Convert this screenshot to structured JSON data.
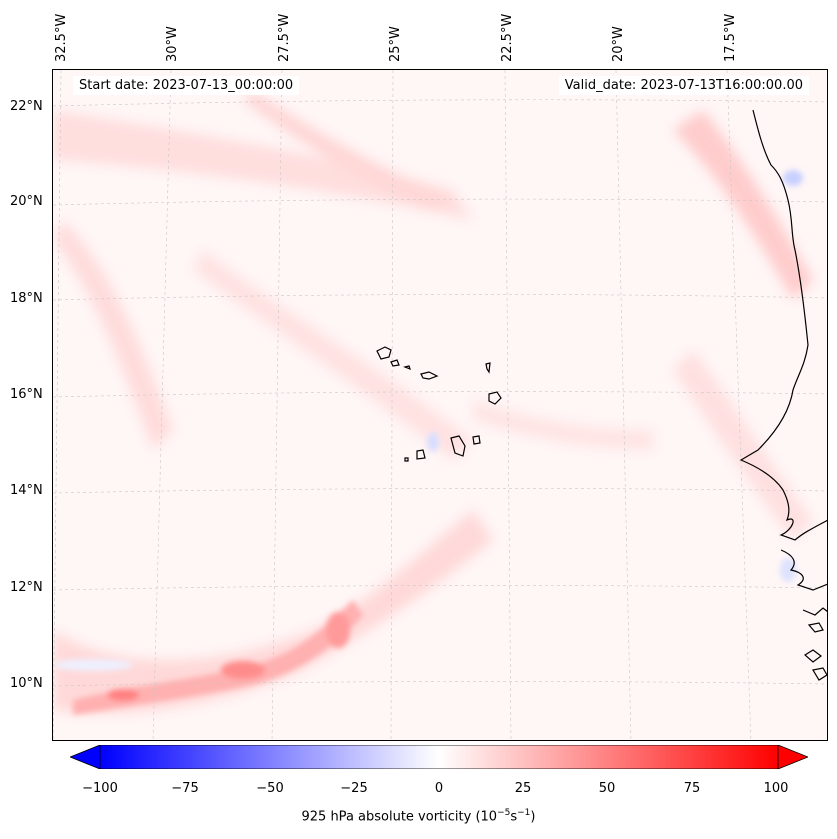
{
  "map": {
    "start_label": "Start date: 2023-07-13_00:00:00",
    "valid_label": "Valid_date: 2023-07-13T16:00:00.00",
    "longitudes": [
      "32.5°W",
      "30°W",
      "27.5°W",
      "25°W",
      "22.5°W",
      "20°W",
      "17.5°W"
    ],
    "latitudes": [
      "22°N",
      "20°N",
      "18°N",
      "16°N",
      "14°N",
      "12°N",
      "10°N"
    ],
    "field": "925 hPa absolute vorticity",
    "colormap": "bwr",
    "colors": {
      "negative": "#0000ff",
      "neutral": "#ffffff",
      "positive": "#ff0000",
      "coast": "#000000"
    }
  },
  "colorbar": {
    "ticks": [
      "−100",
      "−75",
      "−50",
      "−25",
      "0",
      "25",
      "50",
      "75",
      "100"
    ],
    "range": [
      -100,
      100
    ],
    "levels": 41,
    "title_prefix": "925 hPa absolute vorticity (10",
    "title_exp1": "−5",
    "title_mid": "s",
    "title_exp2": "−1",
    "title_suffix": ")"
  }
}
